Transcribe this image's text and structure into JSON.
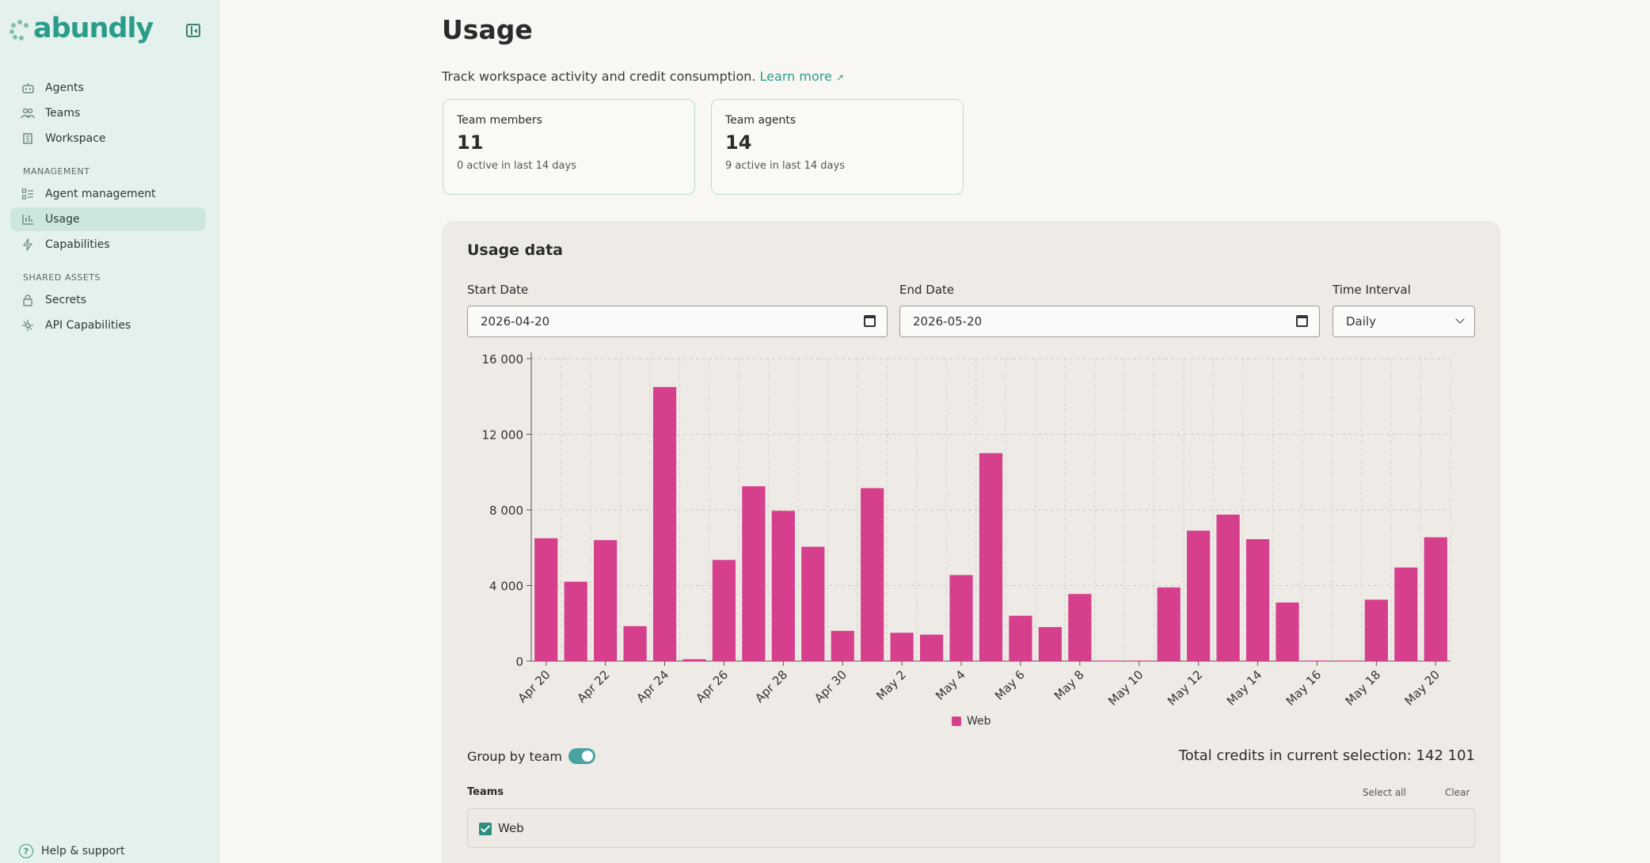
{
  "sidebar": {
    "logo": "abundly",
    "nav": [
      {
        "label": "Agents",
        "icon": "robot-icon"
      },
      {
        "label": "Teams",
        "icon": "people-icon"
      },
      {
        "label": "Workspace",
        "icon": "building-icon"
      }
    ],
    "management_title": "MANAGEMENT",
    "management": [
      {
        "label": "Agent management",
        "icon": "list-icon"
      },
      {
        "label": "Usage",
        "icon": "bar-chart-icon"
      },
      {
        "label": "Capabilities",
        "icon": "bolt-icon"
      }
    ],
    "shared_title": "SHARED ASSETS",
    "shared": [
      {
        "label": "Secrets",
        "icon": "lock-icon"
      },
      {
        "label": "API Capabilities",
        "icon": "network-icon"
      }
    ],
    "help": "Help & support"
  },
  "page": {
    "title": "Usage",
    "subtitle": "Track workspace activity and credit consumption.",
    "learn_more": "Learn more"
  },
  "stats": [
    {
      "label": "Team members",
      "value": "11",
      "sub": "0 active in last 14 days"
    },
    {
      "label": "Team agents",
      "value": "14",
      "sub": "9 active in last 14 days"
    }
  ],
  "usage": {
    "title": "Usage data",
    "start_label": "Start Date",
    "start_value": "2026-04-20",
    "end_label": "End Date",
    "end_value": "2026-05-20",
    "interval_label": "Time Interval",
    "interval_value": "Daily",
    "group_label": "Group by team",
    "group_on": true,
    "total": "Total credits in current selection: 142 101",
    "teams_label": "Teams",
    "select_all": "Select all",
    "clear": "Clear",
    "team_name": "Web"
  },
  "chart_data": {
    "type": "bar",
    "categories": [
      "Apr 20",
      "Apr 21",
      "Apr 22",
      "Apr 23",
      "Apr 24",
      "Apr 25",
      "Apr 26",
      "Apr 27",
      "Apr 28",
      "Apr 29",
      "Apr 30",
      "May 1",
      "May 2",
      "May 3",
      "May 4",
      "May 5",
      "May 6",
      "May 7",
      "May 8",
      "May 9",
      "May 10",
      "May 11",
      "May 12",
      "May 13",
      "May 14",
      "May 15",
      "May 16",
      "May 17",
      "May 18",
      "May 19",
      "May 20"
    ],
    "tick_labels": [
      "Apr 20",
      "Apr 22",
      "Apr 24",
      "Apr 26",
      "Apr 28",
      "Apr 30",
      "May 2",
      "May 4",
      "May 6",
      "May 8",
      "May 10",
      "May 12",
      "May 14",
      "May 16",
      "May 18",
      "May 20"
    ],
    "series": [
      {
        "name": "Web",
        "color": "#d63f8c",
        "values": [
          6500,
          4200,
          6400,
          1850,
          14500,
          100,
          5350,
          9250,
          7950,
          6050,
          1600,
          9150,
          1500,
          1400,
          4550,
          11000,
          2400,
          1800,
          3550,
          30,
          30,
          3900,
          6900,
          7750,
          6450,
          3100,
          30,
          30,
          3250,
          4950,
          6550
        ]
      }
    ],
    "ylim": [
      0,
      16000
    ],
    "yticks": [
      0,
      4000,
      8000,
      12000,
      16000
    ],
    "ytick_labels": [
      "0",
      "4 000",
      "8 000",
      "12 000",
      "16 000"
    ],
    "grid": true,
    "legend": "bottom-center"
  }
}
